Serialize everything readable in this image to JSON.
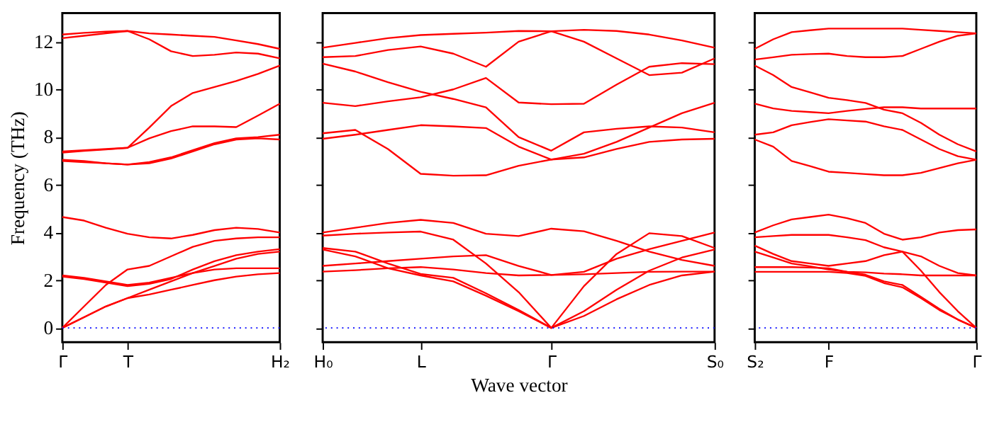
{
  "chart_data": [
    {
      "type": "line",
      "ylabel": "Frequency (THz)",
      "categories": [
        "Γ",
        null,
        null,
        "T",
        null,
        null,
        null,
        null,
        null,
        null,
        "H₂"
      ],
      "ylim": [
        -0.6,
        13.2
      ],
      "yticks": [
        0,
        2,
        4,
        6,
        8,
        10,
        12
      ],
      "grid": false,
      "marker": "none",
      "line_style": "solid",
      "ref_lines": [
        {
          "axis": "y",
          "value": 0,
          "color": "#0000ff",
          "line_style": "dotted"
        }
      ],
      "series": [
        {
          "color": "#ff0000",
          "values": [
            0,
            0.45,
            0.9,
            1.25,
            1.4,
            1.6,
            1.8,
            2.0,
            2.15,
            2.25,
            2.3
          ]
        },
        {
          "color": "#ff0000",
          "values": [
            0,
            0.45,
            0.9,
            1.25,
            1.6,
            1.95,
            2.3,
            2.6,
            2.9,
            3.1,
            3.2
          ]
        },
        {
          "color": "#ff0000",
          "values": [
            0,
            0.9,
            1.8,
            2.45,
            2.6,
            3.0,
            3.4,
            3.65,
            3.75,
            3.8,
            3.8
          ]
        },
        {
          "color": "#ff0000",
          "values": [
            2.2,
            2.1,
            1.95,
            1.8,
            1.9,
            2.1,
            2.3,
            2.45,
            2.5,
            2.5,
            2.5
          ]
        },
        {
          "color": "#ff0000",
          "values": [
            2.15,
            2.05,
            1.9,
            1.75,
            1.85,
            2.05,
            2.45,
            2.8,
            3.05,
            3.2,
            3.3
          ]
        },
        {
          "color": "#ff0000",
          "values": [
            4.65,
            4.5,
            4.2,
            3.95,
            3.8,
            3.75,
            3.9,
            4.1,
            4.2,
            4.15,
            4.0
          ]
        },
        {
          "color": "#ff0000",
          "values": [
            7.0,
            6.95,
            6.9,
            6.85,
            6.9,
            7.1,
            7.4,
            7.7,
            7.9,
            7.95,
            7.9
          ]
        },
        {
          "color": "#ff0000",
          "values": [
            7.05,
            7.0,
            6.9,
            6.85,
            6.95,
            7.15,
            7.45,
            7.75,
            7.95,
            8.0,
            8.1
          ]
        },
        {
          "color": "#ff0000",
          "values": [
            7.35,
            7.42,
            7.48,
            7.55,
            7.95,
            8.25,
            8.45,
            8.45,
            8.42,
            8.9,
            9.4
          ]
        },
        {
          "color": "#ff0000",
          "values": [
            7.4,
            7.45,
            7.5,
            7.55,
            8.4,
            9.3,
            9.85,
            10.1,
            10.35,
            10.65,
            11.0
          ]
        },
        {
          "color": "#ff0000",
          "values": [
            12.3,
            12.37,
            12.42,
            12.45,
            12.35,
            12.3,
            12.25,
            12.2,
            12.05,
            11.9,
            11.7
          ]
        },
        {
          "color": "#ff0000",
          "values": [
            12.15,
            12.25,
            12.35,
            12.45,
            12.1,
            11.6,
            11.4,
            11.45,
            11.55,
            11.5,
            11.3
          ]
        }
      ]
    },
    {
      "type": "line",
      "xlabel": "Wave vector",
      "categories": [
        "H₀",
        null,
        null,
        "L",
        null,
        null,
        null,
        "Γ",
        null,
        null,
        null,
        null,
        "S₀"
      ],
      "ylim": [
        -0.6,
        13.2
      ],
      "yticks": [
        0,
        2,
        4,
        6,
        8,
        10,
        12
      ],
      "tick_labels": "x",
      "grid": false,
      "marker": "none",
      "line_style": "solid",
      "ref_lines": [
        {
          "axis": "y",
          "value": 0,
          "color": "#0000ff",
          "line_style": "dotted"
        }
      ],
      "series": [
        {
          "color": "#ff0000",
          "values": [
            11.75,
            11.95,
            12.15,
            12.28,
            12.33,
            12.38,
            12.45,
            12.44,
            12.5,
            12.45,
            12.3,
            12.05,
            11.75
          ]
        },
        {
          "color": "#ff0000",
          "values": [
            11.35,
            11.4,
            11.65,
            11.8,
            11.5,
            10.95,
            12.0,
            12.44,
            12.0,
            11.3,
            10.6,
            10.7,
            11.3
          ]
        },
        {
          "color": "#ff0000",
          "values": [
            11.08,
            10.75,
            10.3,
            9.9,
            9.6,
            9.25,
            8.0,
            7.43,
            8.2,
            8.35,
            8.45,
            8.4,
            8.2
          ]
        },
        {
          "color": "#ff0000",
          "values": [
            9.44,
            9.3,
            9.5,
            9.67,
            10.0,
            10.48,
            9.45,
            9.38,
            9.4,
            10.2,
            10.95,
            11.1,
            11.06
          ]
        },
        {
          "color": "#ff0000",
          "values": [
            7.93,
            8.1,
            8.3,
            8.5,
            8.45,
            8.38,
            7.6,
            7.06,
            7.3,
            7.8,
            8.4,
            9.0,
            9.44
          ]
        },
        {
          "color": "#ff0000",
          "values": [
            8.16,
            8.3,
            7.5,
            6.46,
            6.38,
            6.4,
            6.8,
            7.06,
            7.15,
            7.5,
            7.8,
            7.9,
            7.93
          ]
        },
        {
          "color": "#ff0000",
          "values": [
            4.0,
            4.2,
            4.4,
            4.53,
            4.4,
            3.95,
            3.85,
            4.16,
            4.05,
            3.65,
            3.2,
            2.85,
            2.6
          ]
        },
        {
          "color": "#ff0000",
          "values": [
            3.87,
            3.95,
            4.0,
            4.04,
            3.7,
            2.7,
            1.5,
            0,
            1.75,
            3.1,
            3.97,
            3.85,
            3.35
          ]
        },
        {
          "color": "#ff0000",
          "values": [
            2.6,
            2.7,
            2.8,
            2.9,
            3.0,
            3.05,
            2.6,
            2.22,
            2.35,
            2.9,
            3.3,
            3.65,
            4.0
          ]
        },
        {
          "color": "#ff0000",
          "values": [
            3.35,
            3.2,
            2.7,
            2.26,
            2.1,
            1.45,
            0.75,
            0,
            0.7,
            1.6,
            2.4,
            2.95,
            3.29
          ]
        },
        {
          "color": "#ff0000",
          "values": [
            3.29,
            3.0,
            2.5,
            2.2,
            1.95,
            1.35,
            0.7,
            0,
            0.5,
            1.2,
            1.8,
            2.2,
            2.36
          ]
        },
        {
          "color": "#ff0000",
          "values": [
            2.36,
            2.42,
            2.5,
            2.55,
            2.45,
            2.3,
            2.2,
            2.22,
            2.25,
            2.3,
            2.35,
            2.36,
            2.36
          ]
        }
      ]
    },
    {
      "type": "line",
      "categories": [
        "S₂",
        null,
        null,
        null,
        "F",
        null,
        null,
        null,
        null,
        null,
        null,
        null,
        "Γ"
      ],
      "ylim": [
        -0.6,
        13.2
      ],
      "yticks": [
        0,
        2,
        4,
        6,
        8,
        10,
        12
      ],
      "tick_labels": "x",
      "grid": false,
      "marker": "none",
      "line_style": "solid",
      "ref_lines": [
        {
          "axis": "y",
          "value": 0,
          "color": "#0000ff",
          "line_style": "dotted"
        }
      ],
      "series": [
        {
          "color": "#ff0000",
          "values": [
            11.7,
            12.1,
            12.4,
            12.48,
            12.55,
            12.55,
            12.55,
            12.55,
            12.55,
            12.5,
            12.45,
            12.4,
            12.35
          ]
        },
        {
          "color": "#ff0000",
          "values": [
            11.25,
            11.35,
            11.45,
            11.48,
            11.5,
            11.4,
            11.35,
            11.35,
            11.4,
            11.7,
            12.0,
            12.25,
            12.35
          ]
        },
        {
          "color": "#ff0000",
          "values": [
            11.0,
            10.6,
            10.1,
            9.88,
            9.65,
            9.55,
            9.43,
            9.15,
            9.0,
            8.6,
            8.1,
            7.7,
            7.4
          ]
        },
        {
          "color": "#ff0000",
          "values": [
            9.4,
            9.2,
            9.1,
            9.05,
            9.0,
            9.1,
            9.18,
            9.25,
            9.25,
            9.2,
            9.2,
            9.2,
            9.2
          ]
        },
        {
          "color": "#ff0000",
          "values": [
            8.1,
            8.2,
            8.5,
            8.63,
            8.75,
            8.7,
            8.65,
            8.45,
            8.3,
            7.9,
            7.5,
            7.2,
            7.05
          ]
        },
        {
          "color": "#ff0000",
          "values": [
            7.9,
            7.6,
            7.0,
            6.78,
            6.55,
            6.5,
            6.45,
            6.4,
            6.4,
            6.5,
            6.7,
            6.9,
            7.05
          ]
        },
        {
          "color": "#ff0000",
          "values": [
            4.0,
            4.3,
            4.55,
            4.65,
            4.75,
            4.6,
            4.4,
            3.95,
            3.7,
            3.8,
            4.0,
            4.1,
            4.13
          ]
        },
        {
          "color": "#ff0000",
          "values": [
            3.8,
            3.85,
            3.9,
            3.9,
            3.9,
            3.8,
            3.68,
            3.38,
            3.2,
            2.4,
            1.5,
            0.7,
            0
          ]
        },
        {
          "color": "#ff0000",
          "values": [
            3.45,
            3.1,
            2.8,
            2.7,
            2.6,
            2.7,
            2.8,
            3.05,
            3.2,
            3.0,
            2.6,
            2.3,
            2.2
          ]
        },
        {
          "color": "#ff0000",
          "values": [
            3.2,
            2.95,
            2.7,
            2.58,
            2.45,
            2.35,
            2.23,
            1.95,
            1.8,
            1.3,
            0.8,
            0.35,
            0
          ]
        },
        {
          "color": "#ff0000",
          "values": [
            2.55,
            2.55,
            2.55,
            2.53,
            2.5,
            2.35,
            2.33,
            2.28,
            2.25,
            2.2,
            2.2,
            2.2,
            2.2
          ]
        },
        {
          "color": "#ff0000",
          "values": [
            2.35,
            2.35,
            2.35,
            2.35,
            2.35,
            2.3,
            2.18,
            1.88,
            1.7,
            1.25,
            0.75,
            0.35,
            0
          ]
        }
      ]
    }
  ]
}
